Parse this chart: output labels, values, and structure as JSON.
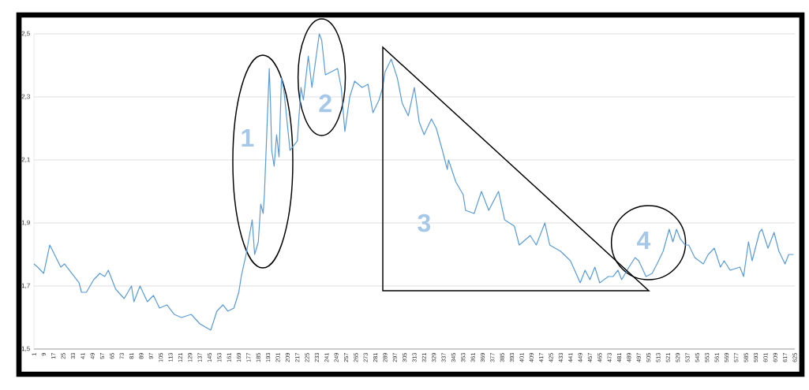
{
  "chart_data": {
    "type": "line",
    "x": [
      1,
      4,
      9,
      14,
      23,
      26,
      38,
      40,
      44,
      50,
      55,
      59,
      62,
      68,
      75,
      81,
      83,
      88,
      94,
      99,
      104,
      110,
      116,
      122,
      130,
      137,
      146,
      151,
      156,
      160,
      165,
      169,
      171,
      175,
      180,
      182,
      185,
      187,
      189,
      190,
      192,
      194,
      195,
      196,
      198,
      200,
      202,
      204,
      206,
      211,
      217,
      220,
      222,
      226,
      229,
      235,
      237,
      240,
      245,
      250,
      253,
      256,
      260,
      264,
      270,
      275,
      279,
      284,
      287,
      289,
      294,
      299,
      303,
      308,
      313,
      317,
      321,
      327,
      331,
      336,
      340,
      341,
      347,
      353,
      355,
      362,
      368,
      374,
      382,
      387,
      395,
      399,
      408,
      413,
      420,
      424,
      433,
      441,
      449,
      453,
      457,
      461,
      465,
      472,
      476,
      480,
      483,
      489,
      494,
      497,
      503,
      508,
      512,
      517,
      522,
      525,
      528,
      531,
      535,
      538,
      543,
      550,
      554,
      559,
      564,
      567,
      572,
      580,
      583,
      587,
      590,
      596,
      598,
      603,
      608,
      612,
      617,
      620,
      624
    ],
    "series": [
      {
        "color": "#5b9bd5",
        "values": [
          1.77,
          1.76,
          1.74,
          1.83,
          1.76,
          1.77,
          1.71,
          1.68,
          1.68,
          1.72,
          1.74,
          1.73,
          1.75,
          1.69,
          1.66,
          1.7,
          1.65,
          1.7,
          1.65,
          1.67,
          1.63,
          1.64,
          1.61,
          1.6,
          1.61,
          1.58,
          1.56,
          1.62,
          1.64,
          1.62,
          1.63,
          1.68,
          1.73,
          1.8,
          1.91,
          1.8,
          1.84,
          1.96,
          1.93,
          1.99,
          2.19,
          2.39,
          2.28,
          2.13,
          2.08,
          2.18,
          2.11,
          2.36,
          2.32,
          2.13,
          2.16,
          2.33,
          2.29,
          2.43,
          2.33,
          2.5,
          2.48,
          2.37,
          2.38,
          2.39,
          2.33,
          2.19,
          2.3,
          2.35,
          2.33,
          2.34,
          2.25,
          2.29,
          2.33,
          2.38,
          2.42,
          2.36,
          2.28,
          2.24,
          2.33,
          2.22,
          2.18,
          2.23,
          2.2,
          2.13,
          2.07,
          2.1,
          2.03,
          1.99,
          1.94,
          1.93,
          2.0,
          1.94,
          2.0,
          1.91,
          1.89,
          1.83,
          1.86,
          1.83,
          1.9,
          1.83,
          1.81,
          1.78,
          1.71,
          1.75,
          1.72,
          1.76,
          1.71,
          1.73,
          1.73,
          1.75,
          1.72,
          1.76,
          1.79,
          1.78,
          1.73,
          1.74,
          1.77,
          1.81,
          1.88,
          1.84,
          1.88,
          1.85,
          1.83,
          1.83,
          1.79,
          1.77,
          1.8,
          1.82,
          1.76,
          1.78,
          1.75,
          1.76,
          1.73,
          1.84,
          1.78,
          1.87,
          1.88,
          1.82,
          1.87,
          1.81,
          1.77,
          1.8,
          1.8
        ]
      }
    ],
    "xlim": [
      1,
      625
    ],
    "xticks": [
      1,
      9,
      17,
      25,
      33,
      41,
      49,
      57,
      65,
      73,
      81,
      89,
      97,
      105,
      113,
      121,
      129,
      137,
      145,
      153,
      161,
      169,
      177,
      185,
      193,
      201,
      209,
      217,
      225,
      233,
      241,
      249,
      257,
      265,
      273,
      281,
      289,
      297,
      305,
      313,
      321,
      329,
      337,
      345,
      353,
      361,
      369,
      377,
      385,
      393,
      401,
      409,
      417,
      425,
      433,
      441,
      449,
      457,
      465,
      473,
      481,
      489,
      497,
      505,
      513,
      521,
      529,
      537,
      545,
      553,
      561,
      569,
      577,
      585,
      593,
      601,
      609,
      617,
      625
    ],
    "ylim": [
      1.5,
      2.5
    ],
    "yticks": [
      {
        "value": 1.5,
        "label": "1,5"
      },
      {
        "value": 1.7,
        "label": "1,7"
      },
      {
        "value": 1.9,
        "label": "1,9"
      },
      {
        "value": 2.1,
        "label": "2,1"
      },
      {
        "value": 2.3,
        "label": "2,3"
      },
      {
        "value": 2.5,
        "label": "2,5"
      }
    ],
    "grid": "y",
    "annotations": [
      "1",
      "2",
      "3",
      "4"
    ]
  }
}
